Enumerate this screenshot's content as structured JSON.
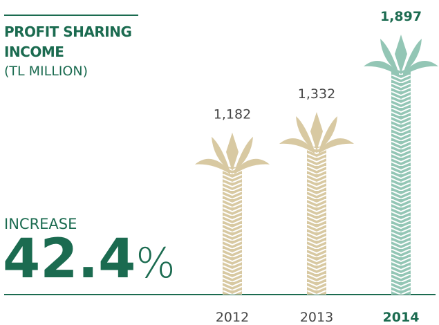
{
  "chart_data": {
    "type": "pictogram",
    "title": "PROFIT SHARING INCOME",
    "subtitle": "(TL MILLION)",
    "categories": [
      "2012",
      "2013",
      "2014"
    ],
    "values": [
      1182,
      1332,
      1897
    ],
    "value_labels": [
      "1,182",
      "1,332",
      "1,897"
    ],
    "colors": [
      "#d8c9a2",
      "#d8c9a2",
      "#93c6b5"
    ],
    "highlight_index": 2,
    "annotation": {
      "label": "INCREASE",
      "value": 42.4,
      "unit": "%"
    }
  }
}
